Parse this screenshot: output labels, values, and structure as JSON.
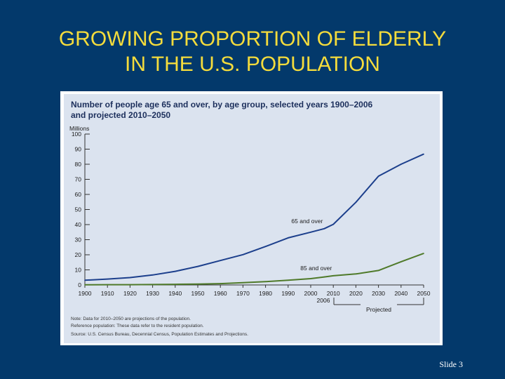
{
  "slide": {
    "title_line1": "GROWING PROPORTION OF ELDERLY",
    "title_line2": "IN THE U.S. POPULATION",
    "number": "Slide 3"
  },
  "colors": {
    "background": "#03396b",
    "title": "#f5dc3c",
    "panel": "#dbe3ef",
    "series_65": "#1c3f8c",
    "series_85": "#4f7a2a"
  },
  "chart_data": {
    "type": "line",
    "title_line1": "Number of people age 65 and over, by age group, selected years 1900–2006",
    "title_line2": "and projected 2010–2050",
    "ylabel": "Millions",
    "ylim": [
      0,
      100
    ],
    "yticks": [
      0,
      10,
      20,
      30,
      40,
      50,
      60,
      70,
      80,
      90,
      100
    ],
    "xlim": [
      1900,
      2050
    ],
    "xticks": [
      1900,
      1910,
      1920,
      1930,
      1940,
      1950,
      1960,
      1970,
      1980,
      1990,
      2000,
      2010,
      2020,
      2030,
      2040,
      2050
    ],
    "x_extra_label": "2006",
    "projected_label": "Projected",
    "projected_range": [
      2010,
      2050
    ],
    "series": [
      {
        "name": "65 and over",
        "x": [
          1900,
          1910,
          1920,
          1930,
          1940,
          1950,
          1960,
          1970,
          1980,
          1990,
          2000,
          2006,
          2010,
          2020,
          2030,
          2040,
          2050
        ],
        "values": [
          3.1,
          3.9,
          4.9,
          6.6,
          9.0,
          12.3,
          16.2,
          20.1,
          25.5,
          31.2,
          35.0,
          37.3,
          40.2,
          54.8,
          72.1,
          80.0,
          86.7
        ]
      },
      {
        "name": "85 and over",
        "x": [
          1900,
          1910,
          1920,
          1930,
          1940,
          1950,
          1960,
          1970,
          1980,
          1990,
          2000,
          2006,
          2010,
          2020,
          2030,
          2040,
          2050
        ],
        "values": [
          0.1,
          0.2,
          0.2,
          0.3,
          0.4,
          0.6,
          0.9,
          1.5,
          2.2,
          3.1,
          4.2,
          5.3,
          6.1,
          7.3,
          9.6,
          15.4,
          20.9
        ]
      }
    ],
    "notes": [
      "Note: Data for 2010–2050 are projections of the population.",
      "Reference population: These data refer to the resident population.",
      "Source: U.S. Census Bureau, Decennial Census, Population Estimates and Projections."
    ]
  }
}
